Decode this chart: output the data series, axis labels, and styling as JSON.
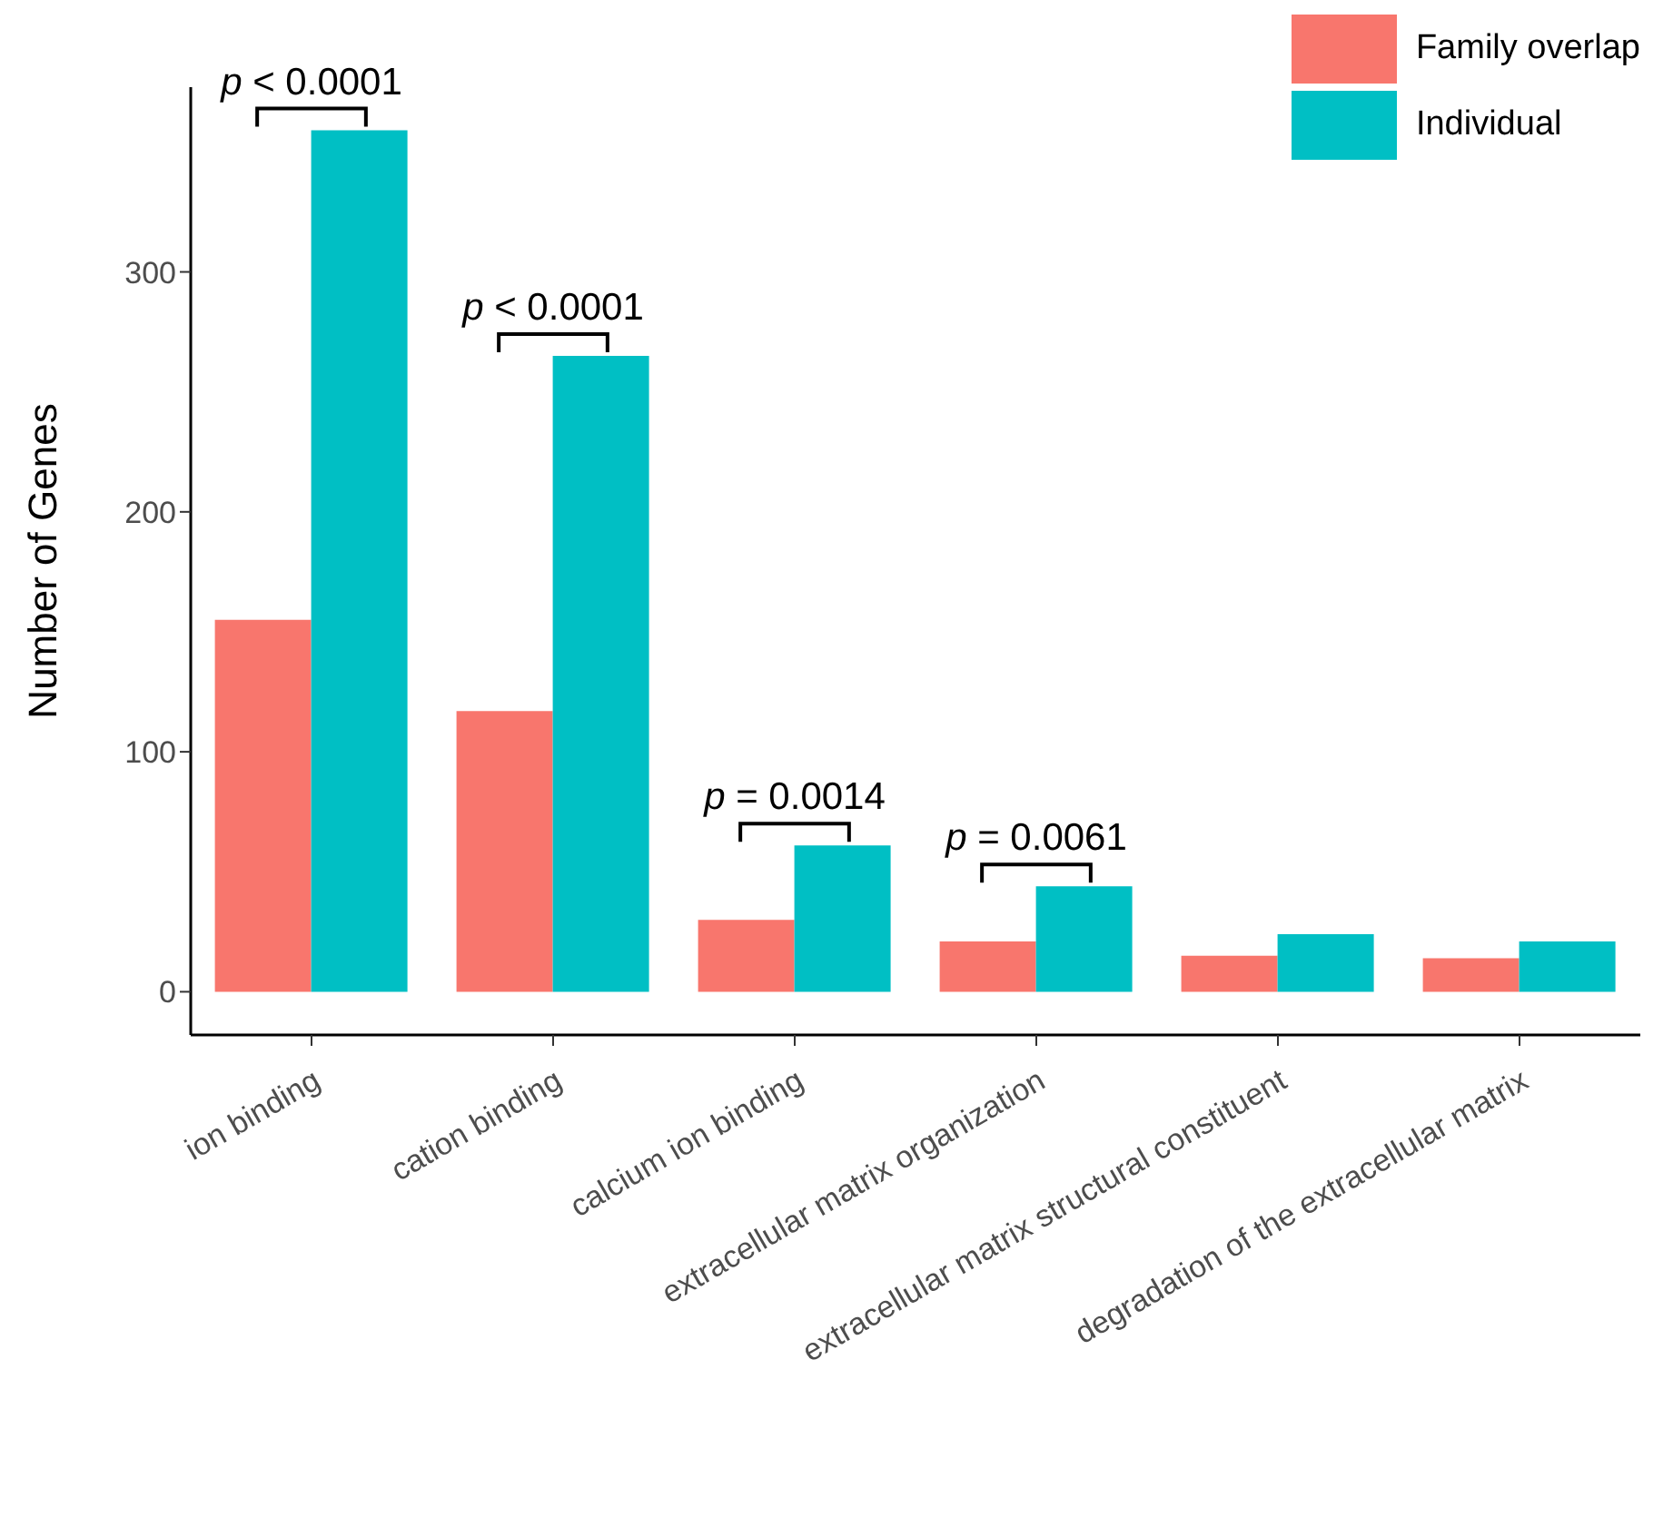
{
  "chart_data": {
    "type": "bar",
    "ylabel": "Number of Genes",
    "categories": [
      "ion binding",
      "cation binding",
      "calcium ion binding",
      "extracellular matrix organization",
      "extracellular matrix structural constituent",
      "degradation of the extracellular matrix"
    ],
    "series": [
      {
        "name": "Family overlap",
        "color": "#f8766d",
        "values": [
          155,
          117,
          30,
          21,
          15,
          14
        ]
      },
      {
        "name": "Individual",
        "color": "#00bfc4",
        "values": [
          359,
          265,
          61,
          44,
          24,
          21
        ]
      }
    ],
    "ylim": [
      -18,
      377
    ],
    "yticks": [
      0,
      100,
      200,
      300
    ],
    "grid": false,
    "legend": "top right",
    "annotations": [
      {
        "text": "p < 0.0001",
        "x": "ion binding",
        "y": 359
      },
      {
        "text": "p < 0.0001",
        "x": "cation binding",
        "y": 265
      },
      {
        "text": "p = 0.0014",
        "x": "calcium ion binding",
        "y": 61
      },
      {
        "text": "p = 0.0061",
        "x": "extracellular matrix organization",
        "y": 44
      }
    ]
  }
}
